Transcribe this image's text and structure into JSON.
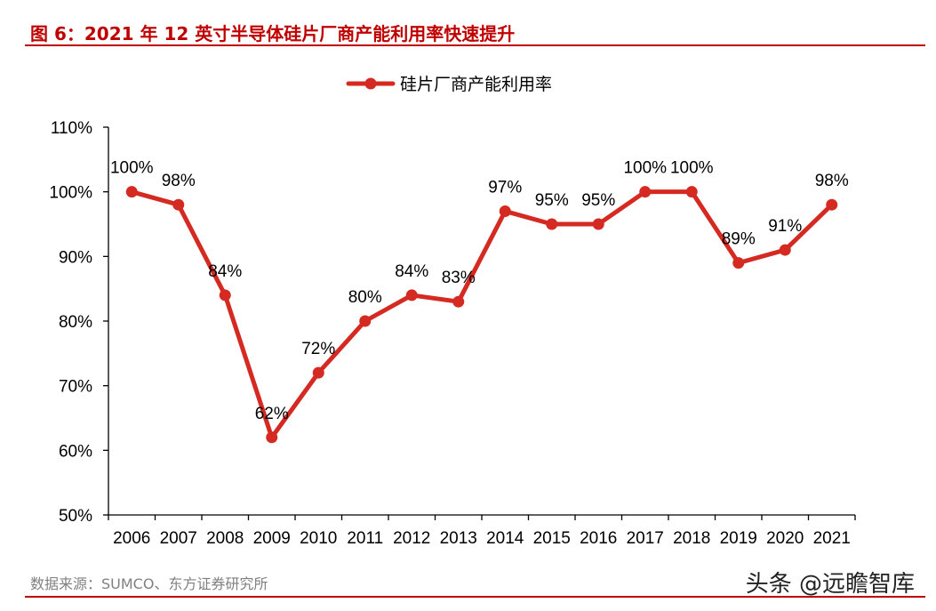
{
  "figure": {
    "title": "图 6：2021 年 12 英寸半导体硅片厂商产能利用率快速提升",
    "source": "数据来源：SUMCO、东方证券研究所",
    "watermark": "头条 @远瞻智库"
  },
  "chart_data": {
    "type": "line",
    "categories": [
      "2006",
      "2007",
      "2008",
      "2009",
      "2010",
      "2011",
      "2012",
      "2013",
      "2014",
      "2015",
      "2016",
      "2017",
      "2018",
      "2019",
      "2020",
      "2021"
    ],
    "series": [
      {
        "name": "硅片厂商产能利用率",
        "values": [
          100,
          98,
          84,
          62,
          72,
          80,
          84,
          83,
          97,
          95,
          95,
          100,
          100,
          89,
          91,
          98
        ],
        "labels": [
          "100%",
          "98%",
          "84%",
          "62%",
          "72%",
          "80%",
          "84%",
          "83%",
          "97%",
          "95%",
          "95%",
          "100%",
          "100%",
          "89%",
          "91%",
          "98%"
        ],
        "color": "#d42a22"
      }
    ],
    "y_ticks": [
      "50%",
      "60%",
      "70%",
      "80%",
      "90%",
      "100%",
      "110%"
    ],
    "ylim": [
      50,
      110
    ],
    "y_unit": "%",
    "grid": false,
    "legend_position": "top-center"
  }
}
